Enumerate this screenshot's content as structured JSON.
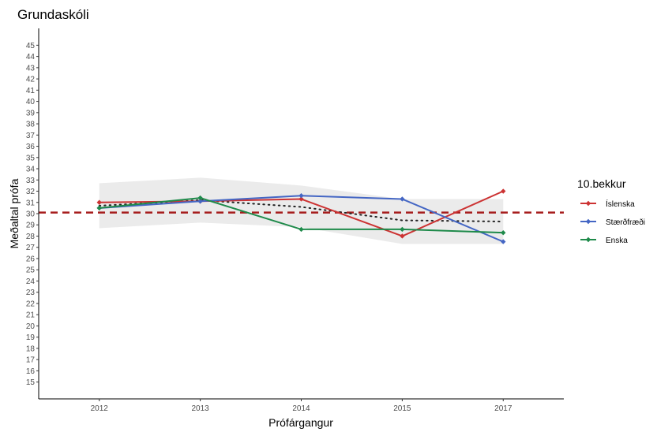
{
  "chart_data": {
    "type": "line",
    "title": "Grundaskóli",
    "xlabel": "Prófárgangur",
    "ylabel": "Meðaltal prófa",
    "categories": [
      "2012",
      "2013",
      "2014",
      "2015",
      "2017"
    ],
    "x_positions": [
      2012,
      2013,
      2014,
      2015,
      2016
    ],
    "ylim": [
      13.5,
      46.5
    ],
    "yticks": [
      15,
      16,
      17,
      18,
      19,
      20,
      21,
      22,
      23,
      24,
      25,
      26,
      27,
      28,
      29,
      30,
      31,
      32,
      33,
      34,
      35,
      36,
      37,
      38,
      39,
      40,
      41,
      42,
      43,
      44,
      45
    ],
    "legend_title": "10.bekkur",
    "legend_position": "right",
    "grid": false,
    "series": [
      {
        "name": "Íslenska",
        "color": "#cc3333",
        "values": [
          31.0,
          31.1,
          31.3,
          28.0,
          32.0
        ]
      },
      {
        "name": "Stærðfræði",
        "color": "#4466c4",
        "values": [
          30.5,
          31.1,
          31.6,
          31.3,
          27.5
        ]
      },
      {
        "name": "Enska",
        "color": "#1e8a4a",
        "values": [
          30.5,
          31.4,
          28.6,
          28.6,
          28.3
        ]
      }
    ],
    "reference_line": {
      "value": 30.1,
      "color": "#a61c1c",
      "style": "dashed"
    },
    "trend": {
      "style": "dotted",
      "color": "#222222",
      "values": [
        30.7,
        31.2,
        30.6,
        29.4,
        29.3
      ]
    },
    "confidence_band": {
      "color": "#ebebeb",
      "lower": [
        28.7,
        29.2,
        28.8,
        27.3,
        27.3
      ],
      "upper": [
        32.7,
        33.2,
        32.5,
        31.3,
        31.3
      ]
    }
  }
}
